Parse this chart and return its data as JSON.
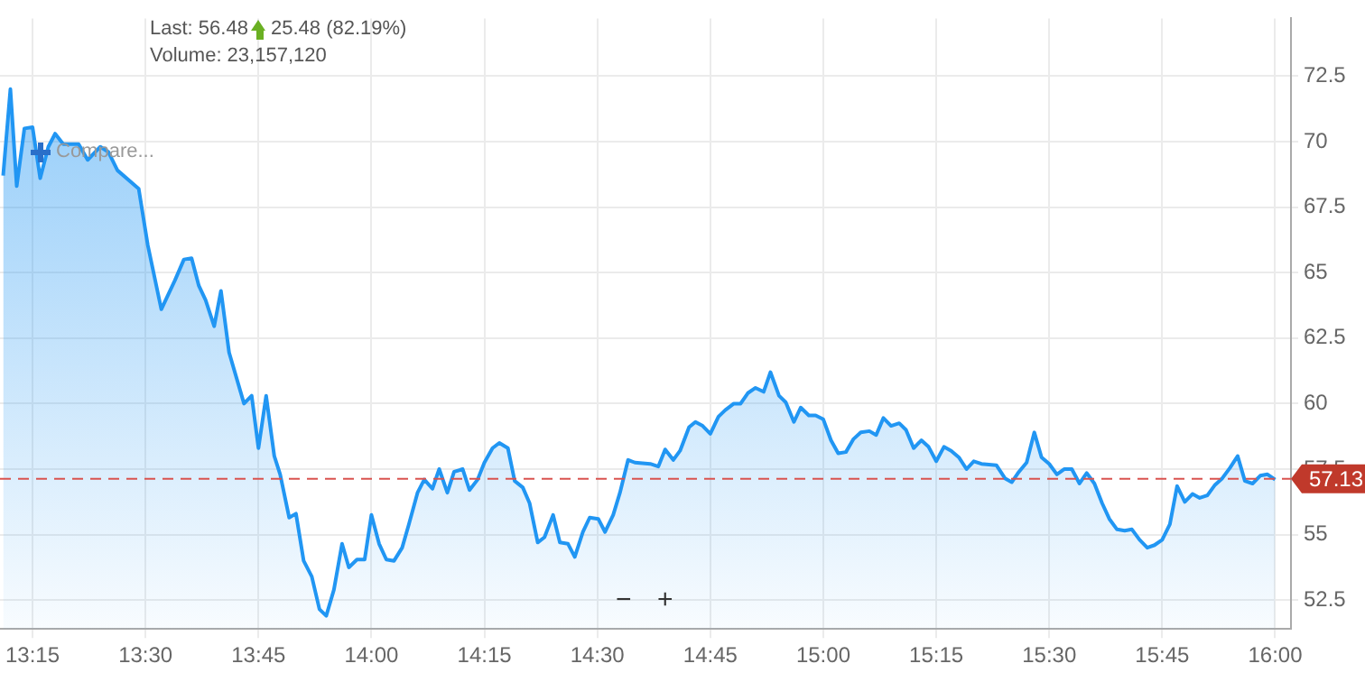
{
  "chart_data": {
    "type": "area",
    "marker": "none",
    "line_style": "solid",
    "grid": true,
    "legend": false,
    "annotations": [
      "Last: 56.48",
      "25.48 (82.19%)",
      "Volume: 23,157,120",
      "Compare...",
      "−",
      "+"
    ],
    "xlim": [
      13.178,
      16.035
    ],
    "ylim": [
      51.4,
      74.7
    ],
    "xticks": [
      {
        "value": 13.25,
        "label": "13:15"
      },
      {
        "value": 13.5,
        "label": "13:30"
      },
      {
        "value": 13.75,
        "label": "13:45"
      },
      {
        "value": 14,
        "label": "14:00"
      },
      {
        "value": 14.25,
        "label": "14:15"
      },
      {
        "value": 14.5,
        "label": "14:30"
      },
      {
        "value": 14.75,
        "label": "14:45"
      },
      {
        "value": 15,
        "label": "15:00"
      },
      {
        "value": 15.25,
        "label": "15:15"
      },
      {
        "value": 15.5,
        "label": "15:30"
      },
      {
        "value": 15.75,
        "label": "15:45"
      },
      {
        "value": 16,
        "label": "16:00"
      }
    ],
    "yticks": [
      52.5,
      55,
      57.5,
      60,
      62.5,
      65,
      67.5,
      70,
      72.5
    ],
    "ref_lines": [
      {
        "axis": "y",
        "value": 57.13,
        "label": "57.13",
        "color": "#d9534f",
        "line_style": "dashed"
      }
    ],
    "x": [
      13.185,
      13.201,
      13.215,
      13.232,
      13.25,
      13.267,
      13.285,
      13.3,
      13.318,
      13.352,
      13.372,
      13.4,
      13.418,
      13.438,
      13.485,
      13.505,
      13.535,
      13.565,
      13.585,
      13.602,
      13.618,
      13.633,
      13.652,
      13.667,
      13.685,
      13.718,
      13.735,
      13.75,
      13.767,
      13.785,
      13.798,
      13.818,
      13.833,
      13.85,
      13.868,
      13.885,
      13.9,
      13.917,
      13.935,
      13.95,
      13.968,
      13.985,
      14.0,
      14.017,
      14.033,
      14.05,
      14.068,
      14.083,
      14.102,
      14.117,
      14.135,
      14.15,
      14.168,
      14.183,
      14.202,
      14.217,
      14.235,
      14.25,
      14.268,
      14.283,
      14.302,
      14.317,
      14.335,
      14.35,
      14.368,
      14.383,
      14.402,
      14.417,
      14.435,
      14.45,
      14.468,
      14.483,
      14.502,
      14.517,
      14.535,
      14.55,
      14.568,
      14.583,
      14.617,
      14.635,
      14.65,
      14.668,
      14.683,
      14.703,
      14.717,
      14.733,
      14.75,
      14.768,
      14.783,
      14.802,
      14.817,
      14.833,
      14.85,
      14.868,
      14.883,
      14.902,
      14.917,
      14.935,
      14.95,
      14.968,
      14.983,
      15.0,
      15.017,
      15.033,
      15.05,
      15.067,
      15.083,
      15.102,
      15.117,
      15.133,
      15.15,
      15.168,
      15.183,
      15.2,
      15.217,
      15.233,
      15.25,
      15.267,
      15.283,
      15.3,
      15.317,
      15.333,
      15.35,
      15.383,
      15.402,
      15.417,
      15.433,
      15.45,
      15.467,
      15.483,
      15.5,
      15.517,
      15.533,
      15.55,
      15.567,
      15.583,
      15.6,
      15.617,
      15.633,
      15.65,
      15.667,
      15.683,
      15.7,
      15.717,
      15.733,
      15.75,
      15.767,
      15.783,
      15.8,
      15.817,
      15.833,
      15.85,
      15.867,
      15.883,
      15.9,
      15.917,
      15.933,
      15.95,
      15.967,
      15.983,
      16.0
    ],
    "series": [
      {
        "color": "#2196f3",
        "values": [
          68.7,
          72.0,
          68.3,
          70.5,
          70.55,
          68.6,
          69.8,
          70.3,
          69.9,
          69.9,
          69.3,
          69.8,
          69.6,
          68.9,
          68.2,
          66.05,
          63.6,
          64.7,
          65.5,
          65.55,
          64.5,
          63.95,
          62.95,
          64.3,
          61.95,
          60.0,
          60.3,
          58.3,
          60.3,
          58.0,
          57.3,
          55.65,
          55.8,
          54.0,
          53.4,
          52.15,
          51.9,
          52.9,
          54.65,
          53.75,
          54.05,
          54.05,
          55.75,
          54.65,
          54.05,
          54.0,
          54.5,
          55.4,
          56.6,
          57.1,
          56.75,
          57.5,
          56.6,
          57.4,
          57.5,
          56.7,
          57.1,
          57.75,
          58.3,
          58.5,
          58.3,
          57.05,
          56.8,
          56.2,
          54.7,
          54.9,
          55.75,
          54.7,
          54.65,
          54.15,
          55.1,
          55.65,
          55.6,
          55.1,
          55.75,
          56.6,
          57.85,
          57.75,
          57.7,
          57.6,
          58.25,
          57.85,
          58.2,
          59.1,
          59.3,
          59.15,
          58.85,
          59.5,
          59.75,
          60.0,
          60.0,
          60.4,
          60.6,
          60.45,
          61.2,
          60.3,
          60.05,
          59.3,
          59.85,
          59.55,
          59.55,
          59.4,
          58.6,
          58.1,
          58.15,
          58.65,
          58.9,
          58.95,
          58.8,
          59.45,
          59.15,
          59.25,
          59.0,
          58.3,
          58.6,
          58.35,
          57.8,
          58.35,
          58.2,
          57.95,
          57.5,
          57.8,
          57.7,
          57.65,
          57.15,
          57.0,
          57.4,
          57.75,
          58.9,
          57.95,
          57.7,
          57.3,
          57.5,
          57.5,
          56.95,
          57.35,
          56.95,
          56.2,
          55.6,
          55.2,
          55.15,
          55.2,
          54.8,
          54.5,
          54.6,
          54.8,
          55.4,
          56.85,
          56.25,
          56.55,
          56.4,
          56.5,
          56.9,
          57.15,
          57.55,
          58.0,
          57.05,
          56.95,
          57.25,
          57.3,
          57.1
        ]
      }
    ]
  }
}
